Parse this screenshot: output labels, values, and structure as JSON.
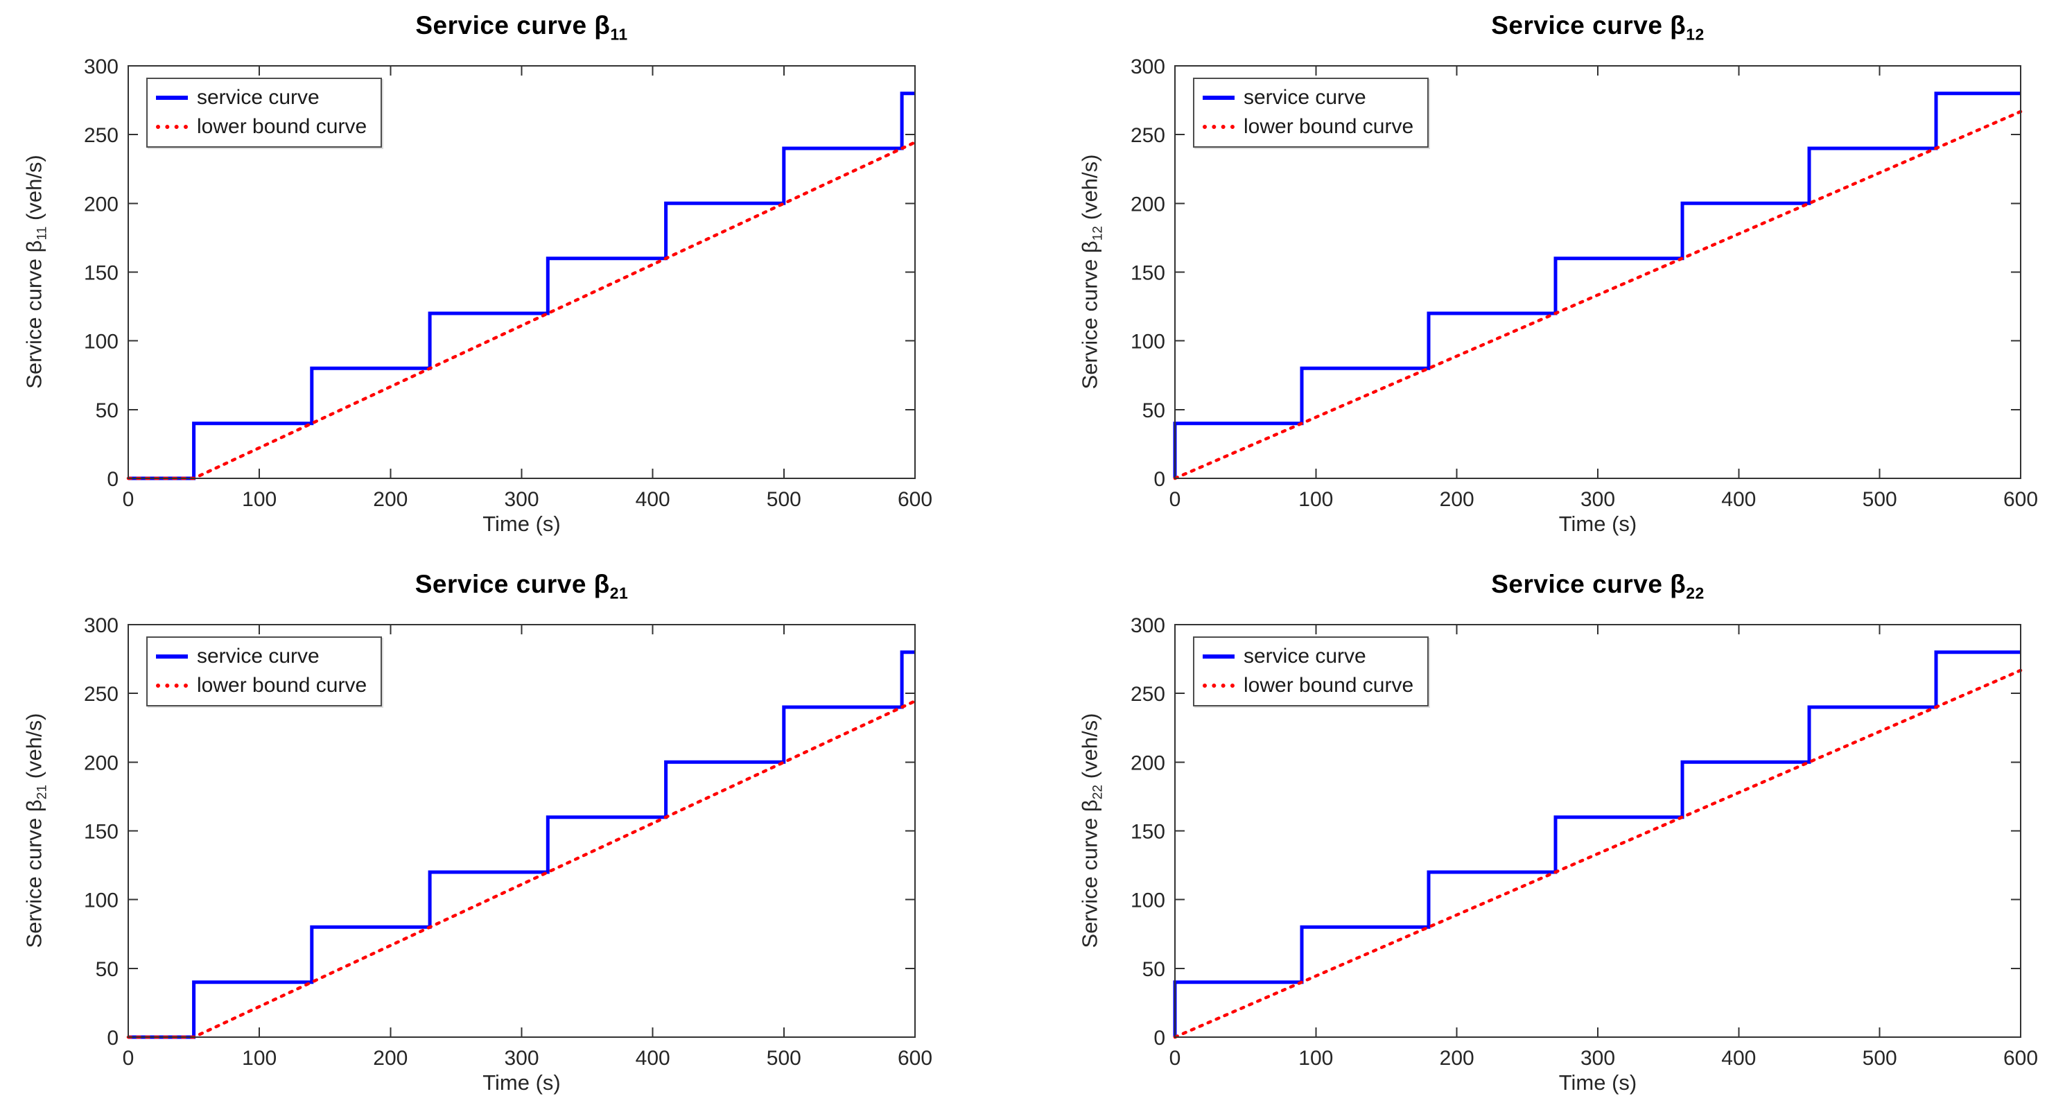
{
  "figure": {
    "xlabel": "Time (s)",
    "legend": {
      "service_label": "service curve",
      "bound_label": "lower bound curve"
    },
    "colors": {
      "service": "#0000ff",
      "lower_bound": "#ff0000",
      "axis": "#333333",
      "text": "#262626",
      "background": "#ffffff"
    }
  },
  "chart_data": [
    {
      "type": "line",
      "title_prefix": "Service curve β",
      "title_sub": "11",
      "ylabel_prefix": "Service curve β",
      "ylabel_sub": "11",
      "ylabel_suffix": " (veh/s)",
      "xlabel": "Time (s)",
      "xlim": [
        0,
        600
      ],
      "ylim": [
        0,
        300
      ],
      "xticks": [
        0,
        100,
        200,
        300,
        400,
        500,
        600
      ],
      "yticks": [
        0,
        50,
        100,
        150,
        200,
        250,
        300
      ],
      "grid": false,
      "legend_position": "top-left",
      "series": [
        {
          "name": "service curve",
          "style": "step-solid",
          "color": "#0000ff",
          "points": [
            [
              0,
              0
            ],
            [
              50,
              0
            ],
            [
              50,
              40
            ],
            [
              140,
              40
            ],
            [
              140,
              80
            ],
            [
              230,
              80
            ],
            [
              230,
              120
            ],
            [
              320,
              120
            ],
            [
              320,
              160
            ],
            [
              410,
              160
            ],
            [
              410,
              200
            ],
            [
              500,
              200
            ],
            [
              500,
              240
            ],
            [
              590,
              240
            ],
            [
              590,
              280
            ],
            [
              600,
              280
            ]
          ]
        },
        {
          "name": "lower bound curve",
          "style": "dotted",
          "color": "#ff0000",
          "points": [
            [
              0,
              0
            ],
            [
              50,
              0
            ],
            [
              600,
              244.4
            ]
          ]
        }
      ]
    },
    {
      "type": "line",
      "title_prefix": "Service curve β",
      "title_sub": "12",
      "ylabel_prefix": "Service curve β",
      "ylabel_sub": "12",
      "ylabel_suffix": " (veh/s)",
      "xlabel": "Time (s)",
      "xlim": [
        0,
        600
      ],
      "ylim": [
        0,
        300
      ],
      "xticks": [
        0,
        100,
        200,
        300,
        400,
        500,
        600
      ],
      "yticks": [
        0,
        50,
        100,
        150,
        200,
        250,
        300
      ],
      "grid": false,
      "legend_position": "top-left",
      "series": [
        {
          "name": "service curve",
          "style": "step-solid",
          "color": "#0000ff",
          "points": [
            [
              0,
              0
            ],
            [
              0,
              40
            ],
            [
              90,
              40
            ],
            [
              90,
              80
            ],
            [
              180,
              80
            ],
            [
              180,
              120
            ],
            [
              270,
              120
            ],
            [
              270,
              160
            ],
            [
              360,
              160
            ],
            [
              360,
              200
            ],
            [
              450,
              200
            ],
            [
              450,
              240
            ],
            [
              540,
              240
            ],
            [
              540,
              280
            ],
            [
              600,
              280
            ]
          ]
        },
        {
          "name": "lower bound curve",
          "style": "dotted",
          "color": "#ff0000",
          "points": [
            [
              0,
              0
            ],
            [
              600,
              266.7
            ]
          ]
        }
      ]
    },
    {
      "type": "line",
      "title_prefix": "Service curve β",
      "title_sub": "21",
      "ylabel_prefix": "Service curve β",
      "ylabel_sub": "21",
      "ylabel_suffix": " (veh/s)",
      "xlabel": "Time (s)",
      "xlim": [
        0,
        600
      ],
      "ylim": [
        0,
        300
      ],
      "xticks": [
        0,
        100,
        200,
        300,
        400,
        500,
        600
      ],
      "yticks": [
        0,
        50,
        100,
        150,
        200,
        250,
        300
      ],
      "grid": false,
      "legend_position": "top-left",
      "series": [
        {
          "name": "service curve",
          "style": "step-solid",
          "color": "#0000ff",
          "points": [
            [
              0,
              0
            ],
            [
              50,
              0
            ],
            [
              50,
              40
            ],
            [
              140,
              40
            ],
            [
              140,
              80
            ],
            [
              230,
              80
            ],
            [
              230,
              120
            ],
            [
              320,
              120
            ],
            [
              320,
              160
            ],
            [
              410,
              160
            ],
            [
              410,
              200
            ],
            [
              500,
              200
            ],
            [
              500,
              240
            ],
            [
              590,
              240
            ],
            [
              590,
              280
            ],
            [
              600,
              280
            ]
          ]
        },
        {
          "name": "lower bound curve",
          "style": "dotted",
          "color": "#ff0000",
          "points": [
            [
              0,
              0
            ],
            [
              50,
              0
            ],
            [
              600,
              244.4
            ]
          ]
        }
      ]
    },
    {
      "type": "line",
      "title_prefix": "Service curve β",
      "title_sub": "22",
      "ylabel_prefix": "Service curve β",
      "ylabel_sub": "22",
      "ylabel_suffix": " (veh/s)",
      "xlabel": "Time (s)",
      "xlim": [
        0,
        600
      ],
      "ylim": [
        0,
        300
      ],
      "xticks": [
        0,
        100,
        200,
        300,
        400,
        500,
        600
      ],
      "yticks": [
        0,
        50,
        100,
        150,
        200,
        250,
        300
      ],
      "grid": false,
      "legend_position": "top-left",
      "series": [
        {
          "name": "service curve",
          "style": "step-solid",
          "color": "#0000ff",
          "points": [
            [
              0,
              0
            ],
            [
              0,
              40
            ],
            [
              90,
              40
            ],
            [
              90,
              80
            ],
            [
              180,
              80
            ],
            [
              180,
              120
            ],
            [
              270,
              120
            ],
            [
              270,
              160
            ],
            [
              360,
              160
            ],
            [
              360,
              200
            ],
            [
              450,
              200
            ],
            [
              450,
              240
            ],
            [
              540,
              240
            ],
            [
              540,
              280
            ],
            [
              600,
              280
            ]
          ]
        },
        {
          "name": "lower bound curve",
          "style": "dotted",
          "color": "#ff0000",
          "points": [
            [
              0,
              0
            ],
            [
              600,
              266.7
            ]
          ]
        }
      ]
    }
  ]
}
